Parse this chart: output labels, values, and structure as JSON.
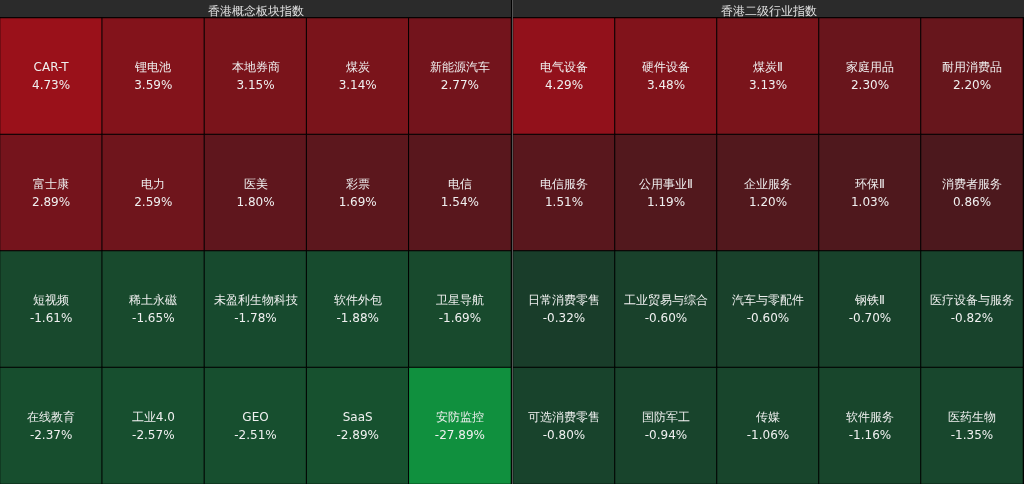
{
  "chart_data": [
    {
      "type": "other",
      "title": "香港概念板块指数",
      "categories": [
        "CAR-T",
        "锂电池",
        "本地券商",
        "煤炭",
        "新能源汽车",
        "富士康",
        "电力",
        "医美",
        "彩票",
        "电信",
        "短视频",
        "稀土永磁",
        "未盈利生物科技",
        "软件外包",
        "卫星导航",
        "在线教育",
        "工业4.0",
        "GEO",
        "SaaS",
        "安防监控"
      ],
      "values": [
        4.73,
        3.59,
        3.15,
        3.14,
        2.77,
        2.89,
        2.59,
        1.8,
        1.69,
        1.54,
        -1.61,
        -1.65,
        -1.78,
        -1.88,
        -1.69,
        -2.37,
        -2.57,
        -2.51,
        -2.89,
        -27.89
      ],
      "value_labels": [
        "4.73%",
        "3.59%",
        "3.15%",
        "3.14%",
        "2.77%",
        "2.89%",
        "2.59%",
        "1.80%",
        "1.69%",
        "1.54%",
        "-1.61%",
        "-1.65%",
        "-1.78%",
        "-1.88%",
        "-1.69%",
        "-2.37%",
        "-2.57%",
        "-2.51%",
        "-2.89%",
        "-27.89%"
      ]
    },
    {
      "type": "other",
      "title": "香港二级行业指数",
      "categories": [
        "电气设备",
        "硬件设备",
        "煤炭Ⅱ",
        "家庭用品",
        "耐用消费品",
        "电信服务",
        "公用事业Ⅱ",
        "企业服务",
        "环保Ⅱ",
        "消费者服务",
        "日常消费零售",
        "工业贸易与综合",
        "汽车与零配件",
        "钢铁Ⅱ",
        "医疗设备与服务",
        "可选消费零售",
        "国防军工",
        "传媒",
        "软件服务",
        "医药生物"
      ],
      "values": [
        4.29,
        3.48,
        3.13,
        2.3,
        2.2,
        1.51,
        1.19,
        1.2,
        1.03,
        0.86,
        -0.32,
        -0.6,
        -0.6,
        -0.7,
        -0.82,
        -0.8,
        -0.94,
        -1.06,
        -1.16,
        -1.35
      ],
      "value_labels": [
        "4.29%",
        "3.48%",
        "3.13%",
        "2.30%",
        "2.20%",
        "1.51%",
        "1.19%",
        "1.20%",
        "1.03%",
        "0.86%",
        "-0.32%",
        "-0.60%",
        "-0.60%",
        "-0.70%",
        "-0.82%",
        "-0.80%",
        "-0.94%",
        "-1.06%",
        "-1.16%",
        "-1.35%"
      ]
    }
  ]
}
